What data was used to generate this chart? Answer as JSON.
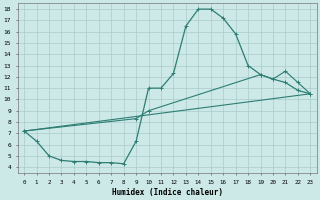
{
  "xlabel": "Humidex (Indice chaleur)",
  "xlim": [
    -0.5,
    23.5
  ],
  "ylim": [
    3.5,
    18.5
  ],
  "yticks": [
    4,
    5,
    6,
    7,
    8,
    9,
    10,
    11,
    12,
    13,
    14,
    15,
    16,
    17,
    18
  ],
  "xticks": [
    0,
    1,
    2,
    3,
    4,
    5,
    6,
    7,
    8,
    9,
    10,
    11,
    12,
    13,
    14,
    15,
    16,
    17,
    18,
    19,
    20,
    21,
    22,
    23
  ],
  "bg_color": "#cce9e8",
  "grid_color": "#aacccc",
  "line_color": "#2e7d73",
  "line1_x": [
    0,
    1,
    2,
    3,
    4,
    5,
    6,
    7,
    8,
    9,
    10,
    11,
    12,
    13,
    14,
    15,
    16,
    17,
    18,
    19,
    20,
    21,
    22,
    23
  ],
  "line1_y": [
    7.2,
    6.3,
    5.0,
    4.6,
    4.5,
    4.5,
    4.4,
    4.4,
    4.3,
    6.3,
    11.0,
    11.0,
    12.3,
    16.5,
    18.0,
    18.0,
    17.2,
    15.8,
    13.0,
    12.2,
    11.8,
    11.5,
    10.8,
    10.5
  ],
  "line2_x": [
    0,
    23
  ],
  "line2_y": [
    7.2,
    10.5
  ],
  "line3_x": [
    0,
    9,
    10,
    19,
    20,
    21,
    22,
    23
  ],
  "line3_y": [
    7.2,
    8.3,
    9.0,
    12.2,
    11.8,
    12.5,
    11.5,
    10.5
  ]
}
